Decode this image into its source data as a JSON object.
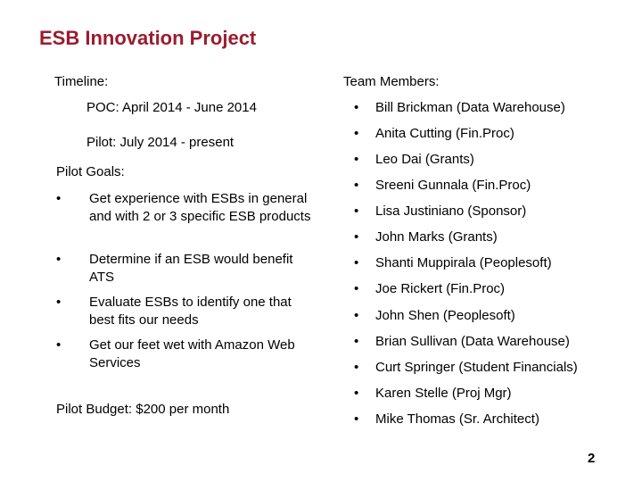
{
  "slide": {
    "title": "ESB Innovation Project",
    "page_number": "2"
  },
  "left": {
    "timeline_label": "Timeline:",
    "timeline": [
      "POC: April 2014 - June 2014",
      "Pilot: July 2014 - present"
    ],
    "goals_label": "Pilot Goals:",
    "bullet_glyph": "•",
    "goals": [
      "Get experience with ESBs in general and with 2 or 3 specific ESB products",
      "Determine if an ESB would benefit ATS",
      "Evaluate ESBs to identify one that best fits our needs",
      "Get our feet wet with Amazon Web Services"
    ],
    "budget": "Pilot Budget: $200 per month"
  },
  "right": {
    "team_label": "Team Members:",
    "members": [
      "Bill Brickman (Data Warehouse)",
      "Anita Cutting (Fin.Proc)",
      "Leo Dai (Grants)",
      "Sreeni Gunnala (Fin.Proc)",
      "Lisa Justiniano (Sponsor)",
      "John Marks (Grants)",
      "Shanti Muppirala (Peoplesoft)",
      "Joe Rickert (Fin.Proc)",
      "John Shen (Peoplesoft)",
      "Brian Sullivan (Data Warehouse)",
      "Curt Springer (Student Financials)",
      "Karen Stelle (Proj Mgr)",
      "Mike Thomas (Sr. Architect)"
    ]
  }
}
